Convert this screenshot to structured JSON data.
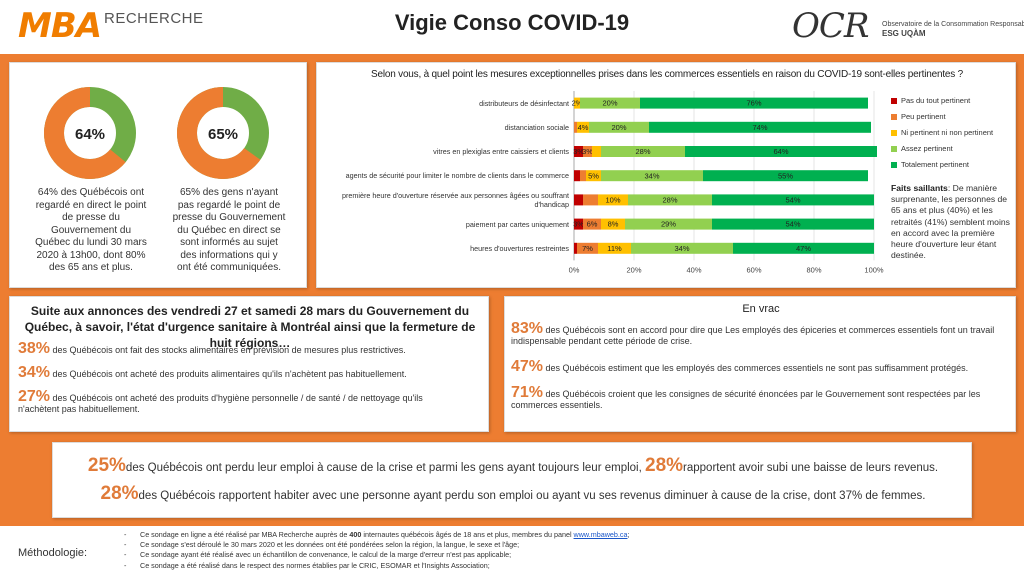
{
  "header": {
    "mba_logo": "MBA",
    "mba_sub": "RECHERCHE",
    "title": "Vigie Conso COVID-19",
    "ocr_logo": "OCR",
    "ocr_line1": "Observatoire de la Consommation Responsable",
    "ocr_line2": "ESG UQÀM"
  },
  "colors": {
    "orange": "#ED7D31",
    "donut_orange": "#ED7D31",
    "donut_green": "#70AD47",
    "pct_accent": "#E07B39"
  },
  "donuts": [
    {
      "value": 64,
      "label": "64%",
      "caption": [
        "64% des Québécois ont",
        "regardé en direct le point",
        "de presse du",
        "Gouvernement du",
        "Québec du lundi 30 mars",
        "2020 à 13h00, dont 80%",
        "des 65 ans et plus."
      ]
    },
    {
      "value": 65,
      "label": "65%",
      "caption": [
        "65% des gens n'ayant",
        "pas regardé le point de",
        "presse du Gouvernement",
        "du Québec en direct se",
        "sont informés au sujet",
        "des informations qui y",
        "ont été communiquées."
      ]
    }
  ],
  "chart_data": {
    "type": "bar",
    "orientation": "horizontal-stacked-100",
    "title": "Selon vous, à quel point les mesures exceptionnelles prises dans les commerces essentiels en raison du COVID-19 sont-elles pertinentes ?",
    "categories": [
      "distributeurs de désinfectant",
      "distanciation sociale",
      "vitres en plexiglas entre caissiers et clients",
      "agents de sécurité pour limiter le nombre de clients dans le commerce",
      "première heure d'ouverture réservée aux personnes âgées ou souffrant d'handicap",
      "paiement par cartes uniquement",
      "heures d'ouvertures restreintes"
    ],
    "series": [
      {
        "name": "Pas du tout pertinent",
        "color": "#C00000",
        "values": [
          0,
          0,
          3,
          2,
          3,
          3,
          1
        ]
      },
      {
        "name": "Peu pertinent",
        "color": "#ED7D31",
        "values": [
          0,
          1,
          3,
          2,
          5,
          6,
          7
        ]
      },
      {
        "name": "Ni pertinent ni non pertinent",
        "color": "#FFC000",
        "values": [
          2,
          4,
          3,
          5,
          10,
          8,
          11
        ]
      },
      {
        "name": "Assez pertinent",
        "color": "#92D050",
        "values": [
          20,
          20,
          28,
          34,
          28,
          29,
          34
        ]
      },
      {
        "name": "Totalement pertinent",
        "color": "#00B050",
        "values": [
          76,
          74,
          64,
          55,
          54,
          54,
          47
        ]
      }
    ],
    "data_labels": [
      [
        "",
        "",
        "2%",
        "20%",
        "76%"
      ],
      [
        "",
        "",
        "4%",
        "20%",
        "74%"
      ],
      [
        "3%",
        "3%",
        "",
        "28%",
        "64%"
      ],
      [
        "",
        "",
        "5%",
        "34%",
        "55%"
      ],
      [
        "",
        "",
        "10%",
        "28%",
        "54%"
      ],
      [
        "3%",
        "6%",
        "8%",
        "29%",
        "54%"
      ],
      [
        "",
        "7%",
        "11%",
        "34%",
        "47%"
      ]
    ],
    "x_ticks": [
      "0%",
      "20%",
      "40%",
      "60%",
      "80%",
      "100%"
    ],
    "xlim": [
      0,
      100
    ],
    "legend_position": "right",
    "grid": true
  },
  "faits": {
    "label": "Faits saillants",
    "text": ": De manière surprenante, les personnes de 65 ans et plus (40%) et les retraités (41%) semblent moins en accord avec la première heure d'ouverture leur étant destinée."
  },
  "annonces": {
    "title": "Suite aux annonces des vendredi 27 et samedi 28 mars du Gouvernement du Québec, à savoir, l'état d'urgence sanitaire à Montréal ainsi que la fermeture de huit régions…",
    "items": [
      {
        "pct": "38%",
        "text": "des Québécois ont fait des stocks alimentaires en prévision de mesures plus restrictives."
      },
      {
        "pct": "34%",
        "text": "des Québécois ont acheté des produits alimentaires qu'ils n'achètent pas habituellement."
      },
      {
        "pct": "27%",
        "text": "des Québécois ont acheté des produits d'hygiène personnelle / de santé / de nettoyage qu'ils n'achètent pas habituellement."
      }
    ]
  },
  "vrac": {
    "title": "En vrac",
    "items": [
      {
        "pct": "83%",
        "text": "des Québécois sont en accord pour dire que Les employés des épiceries et commerces essentiels font un travail indispensable pendant cette période de crise."
      },
      {
        "pct": "47%",
        "text": "des Québécois estiment que les employés des commerces essentiels ne sont pas suffisamment protégés."
      },
      {
        "pct": "71%",
        "text": "des Québécois croient que les consignes de sécurité énoncées par le Gouvernement sont respectées par les commerces essentiels."
      }
    ]
  },
  "emploi": {
    "pct1": "25%",
    "text1": "des Québécois ont perdu leur emploi à cause de la crise et parmi les gens ayant toujours leur emploi,",
    "pct2": "28%",
    "text2": "rapportent avoir subi une baisse de leurs revenus.",
    "pct3": "28%",
    "text3": "des Québécois rapportent habiter avec une personne ayant perdu son emploi ou ayant vu ses revenus diminuer à cause de la crise, dont 37% de femmes."
  },
  "methodologie": {
    "label": "Méthodologie:",
    "line1_a": "Ce sondage en ligne a été réalisé par MBA Recherche auprès de ",
    "line1_b": "400",
    "line1_c": " internautes québécois âgés de 18 ans et plus, membres du panel ",
    "line1_link": "www.mbaweb.ca",
    "line1_d": ";",
    "line2": "Ce sondage s'est déroulé le 30 mars 2020 et les données ont été pondérées selon la région, la langue, le sexe et l'âge;",
    "line3": "Ce sondage ayant été réalisé avec un échantillon de convenance, le calcul de la marge d'erreur n'est pas applicable;",
    "line4": "Ce sondage a été réalisé dans le respect des normes établies par le CRIC, ESOMAR et l'Insights Association;"
  }
}
